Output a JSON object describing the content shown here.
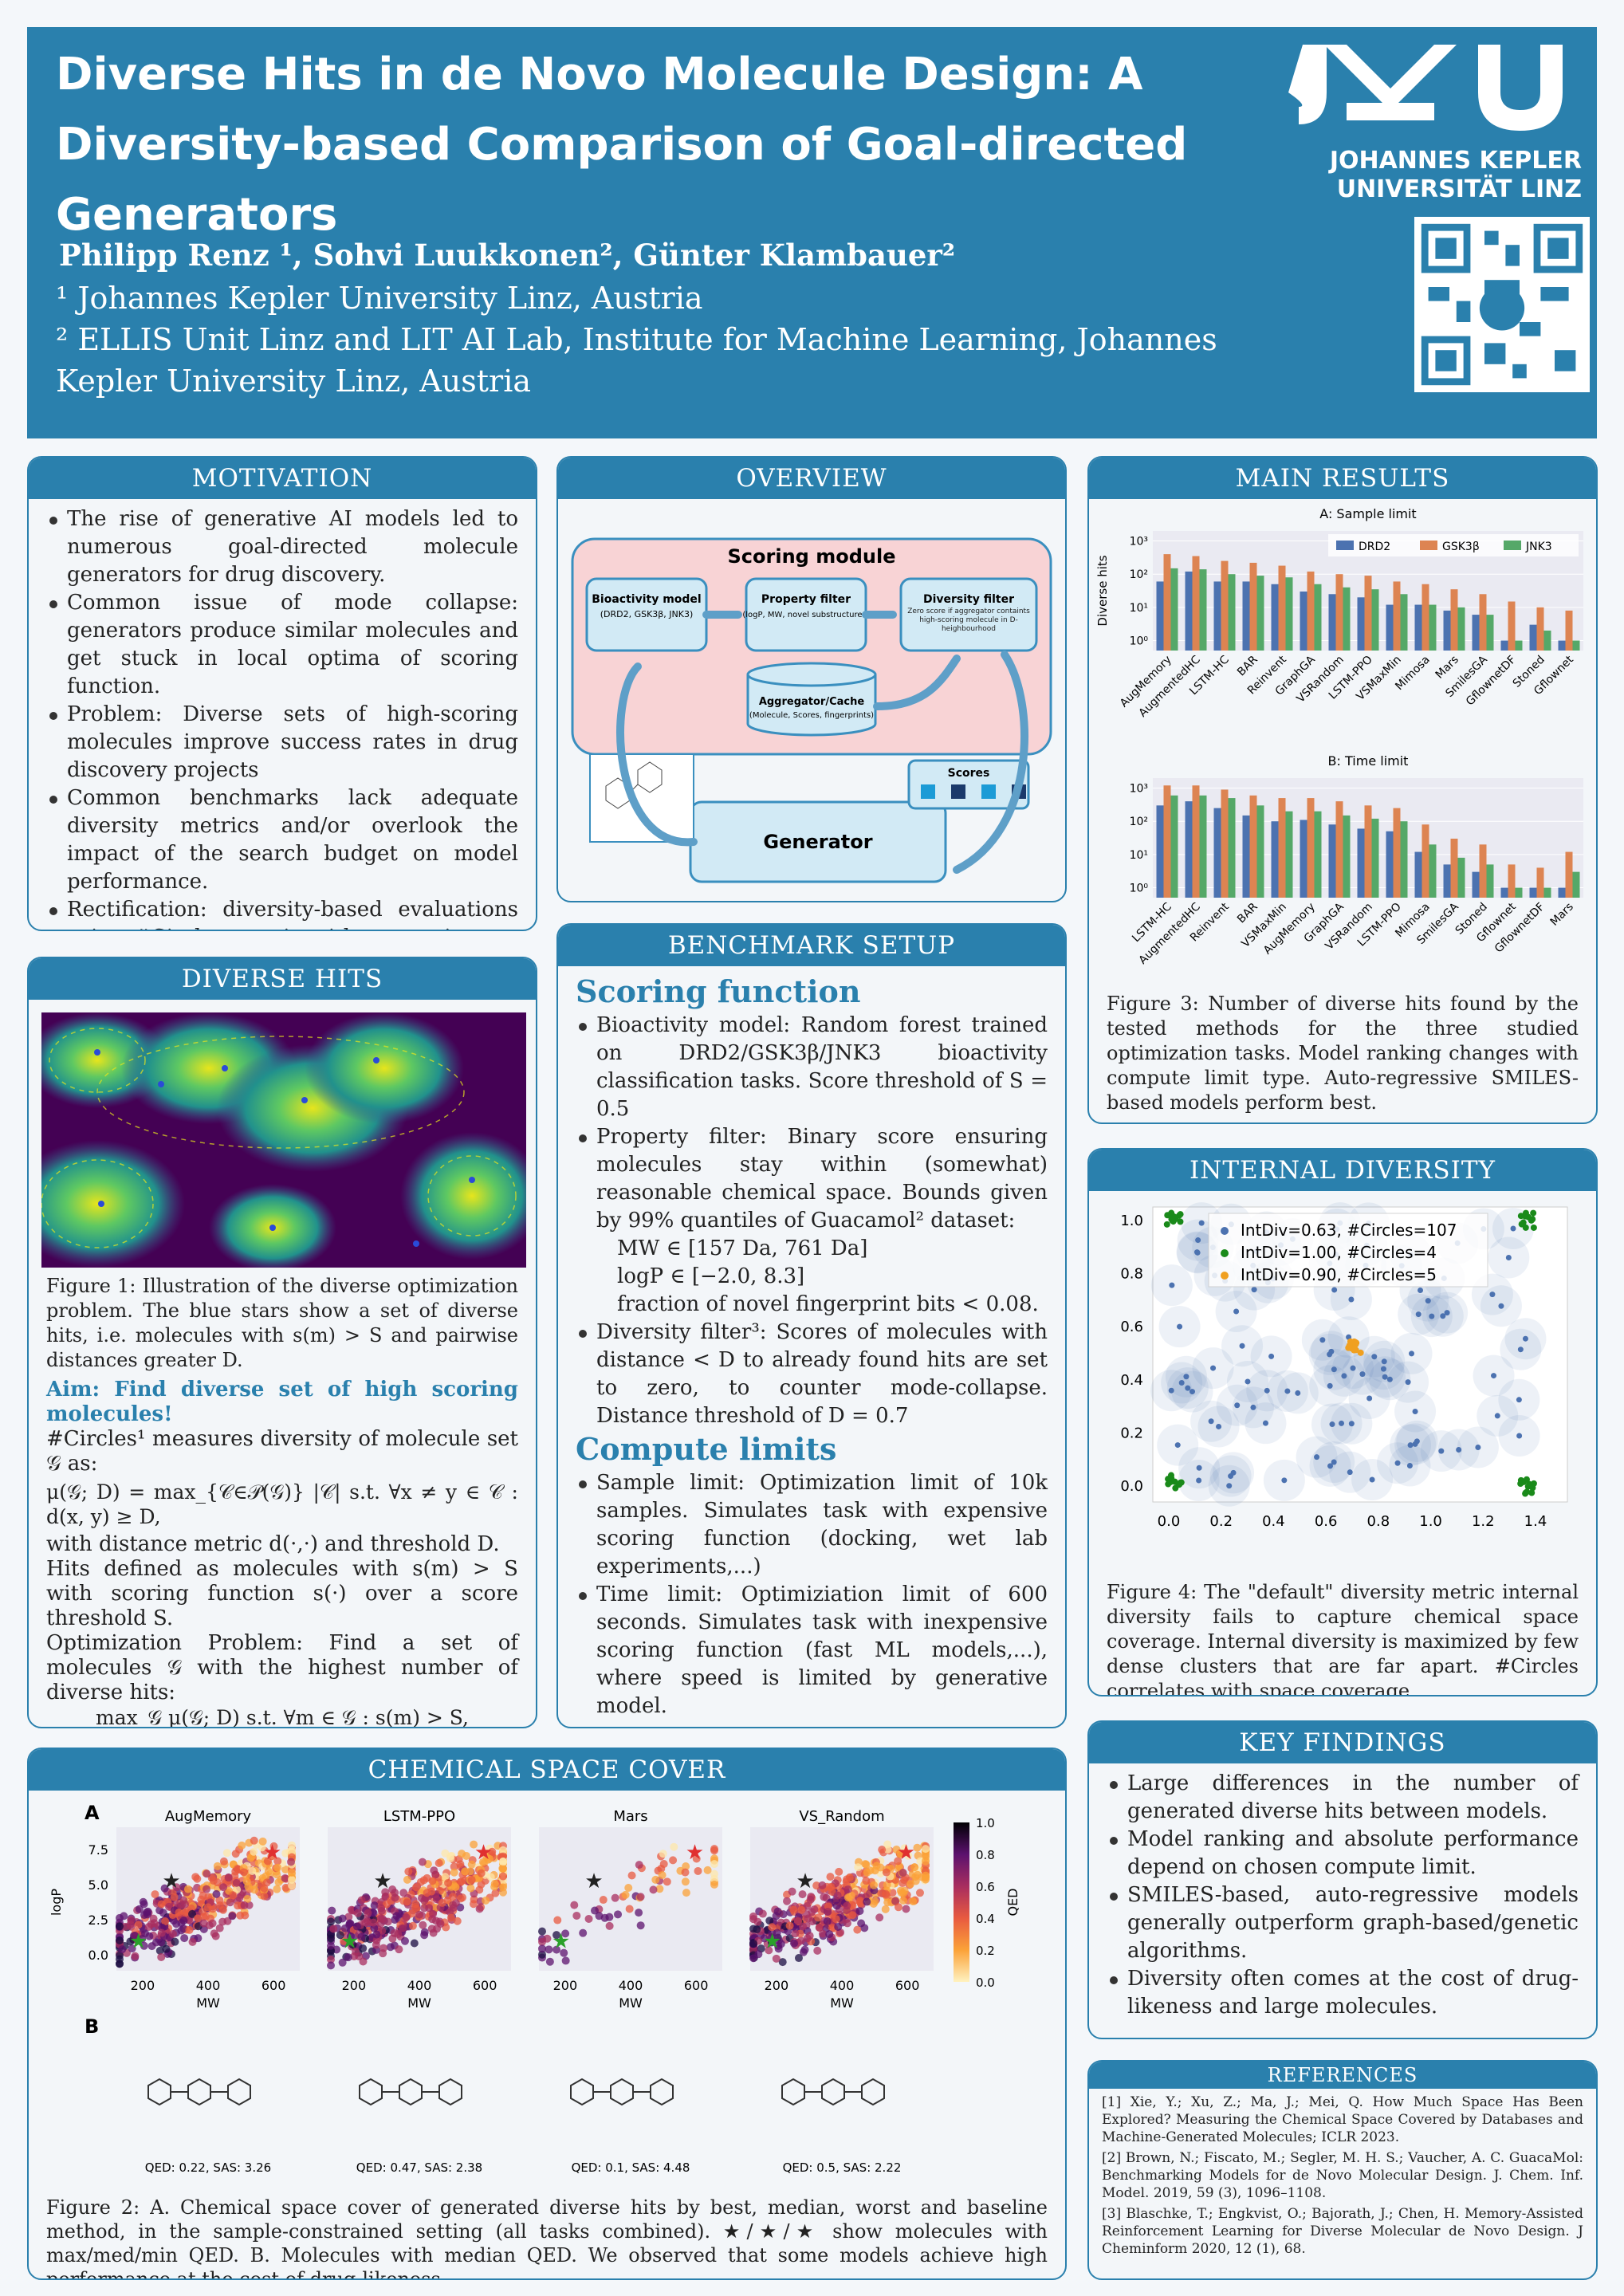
{
  "header": {
    "title": "Diverse Hits in de Novo Molecule Design: A Diversity-based Comparison of Goal-directed Generators",
    "authors": "Philipp Renz ¹, Sohvi Luukkonen², Günter Klambauer²",
    "aff1": "¹ Johannes Kepler University Linz, Austria",
    "aff2": "² ELLIS Unit Linz and LIT AI Lab, Institute for Machine Learning, Johannes Kepler University Linz, Austria",
    "uni": "JOHANNES KEPLER UNIVERSITÄT LINZ"
  },
  "motivation": {
    "title": "MOTIVATION",
    "items": [
      "The rise of generative AI models led to numerous goal-directed molecule generators for drug discovery.",
      "Common issue of mode collapse: generators produce similar molecules and get stuck in local optima of scoring function.",
      "Problem: Diverse sets of high-scoring molecules improve success rates in drug discovery projects",
      "Common benchmarks lack adequate diversity metrics and/or overlook the impact of the search budget on model performance.",
      "Rectification: diversity-based evaluations using #Circles metric with constraints on scoring function calls or compute time."
    ]
  },
  "overview": {
    "title": "OVERVIEW",
    "scoring_module": "Scoring module",
    "bio": "Bioactivity model",
    "bio_sub": "(DRD2, GSK3β, JNK3)",
    "prop": "Property filter",
    "prop_sub": "(logP, MW, novel substructures)",
    "div": "Diversity filter",
    "div_sub": "Zero score if aggregator containts high-scoring molecule in D-heighbourhood",
    "agg": "Aggregator/Cache",
    "agg_sub": "(Molecule, Scores, fingerprints)",
    "scores": "Scores",
    "generator": "Generator"
  },
  "diverse_hits": {
    "title": "DIVERSE HITS",
    "cap1": "Figure 1: Illustration of the diverse optimization problem. The blue stars show a set of diverse hits, i.e. molecules with s(m) > S and pairwise distances greater D.",
    "aim": "Aim: Find diverse set of high scoring molecules!",
    "circles": "#Circles¹ measures diversity of molecule set 𝒢 as:",
    "formula": "μ(𝒢; D) = max_{𝒞∈𝒫(𝒢)} |𝒞| s.t. ∀x ≠ y ∈ 𝒞 : d(x, y) ≥ D,",
    "with": "with distance metric d(·,·) and threshold D.",
    "hits": "Hits defined as molecules with s(m) > S with scoring function s(·) over a score threshold S.",
    "opt": "Optimization Problem: Find a set of molecules 𝒢 with the highest number of diverse hits:",
    "opt_formula": "max_𝒢 μ(𝒢; D)    s.t. ∀m ∈ 𝒢 : s(m) > S,"
  },
  "benchmark": {
    "title": "BENCHMARK SETUP",
    "scoring": "Scoring function",
    "b1": "Bioactivity model: Random forest trained on DRD2/GSK3β/JNK3 bioactivity classification tasks. Score threshold of S = 0.5",
    "b2": "Property filter: Binary score ensuring molecules stay within (somewhat) reasonable chemical space. Bounds given by 99% quantiles of Guacamol² dataset:",
    "s1": "MW ∈ [157 Da, 761 Da]",
    "s2": "logP ∈ [−2.0, 8.3]",
    "s3": "fraction of novel fingerprint bits < 0.08.",
    "b3": "Diversity filter³: Scores of molecules with distance < D to already found hits are set to zero, to counter mode-collapse. Distance threshold of D = 0.7",
    "compute": "Compute limits",
    "c1": "Sample limit: Optimization limit of 10k samples. Simulates task with expensive scoring function (docking, wet lab experiments,...)",
    "c2": "Time limit: Optimiziation limit of 600 seconds. Simulates task with inexpensive scoring function (fast ML models,...), where speed is limited by generative model."
  },
  "main_results": {
    "title": "MAIN RESULTS",
    "cap": "Figure 3: Number of diverse hits found by the tested methods for the three studied optimization tasks. Model ranking changes with compute limit type. Auto-regressive SMILES-based models perform best."
  },
  "internal": {
    "title": "INTERNAL DIVERSITY",
    "cap": "Figure 4: The \"default\" diversity metric internal diversity fails to capture chemical space coverage. Internal diversity is maximized by few dense clusters that are far apart. #Circles correlates with space coverage."
  },
  "key": {
    "title": "KEY FINDINGS",
    "items": [
      "Large differences in the number of generated diverse hits between models.",
      "Model ranking and absolute performance depend on chosen compute limit.",
      "SMILES-based, auto-regressive models generally outperform graph-based/genetic algorithms.",
      "Diversity often comes at the cost of drug-likeness and large molecules."
    ]
  },
  "refs": {
    "title": "REFERENCES",
    "items": [
      "[1] Xie, Y.; Xu, Z.; Ma, J.; Mei, Q. How Much Space Has Been Explored? Measuring the Chemical Space Covered by Databases and Machine-Generated Molecules; ICLR 2023.",
      "[2] Brown, N.; Fiscato, M.; Segler, M. H. S.; Vaucher, A. C. GuacaMol: Benchmarking Models for de Novo Molecular Design. J. Chem. Inf. Model. 2019, 59 (3), 1096–1108.",
      "[3] Blaschke, T.; Engkvist, O.; Bajorath, J.; Chen, H. Memory-Assisted Reinforcement Learning for Diverse Molecular de Novo Design. J Cheminform 2020, 12 (1), 68."
    ]
  },
  "chem": {
    "title": "CHEMICAL SPACE COVER",
    "panels": [
      "AugMemory",
      "LSTM-PPO",
      "Mars",
      "VS_Random"
    ],
    "qed": [
      "QED: 0.22, SAS: 3.26",
      "QED: 0.47, SAS: 2.38",
      "QED: 0.1, SAS: 4.48",
      "QED: 0.5, SAS: 2.22"
    ],
    "cap": "Figure 2: A. Chemical space cover of generated diverse hits by best, median, worst and baseline method, in the sample-constrained setting (all tasks combined). ★/★/★ show molecules with max/med/min QED. B. Molecules with median QED. We observed that some models achieve high performance at the cost of drug-likeness."
  },
  "chart_data": [
    {
      "type": "bar",
      "title": "A: Sample limit",
      "ylabel": "Diverse hits",
      "log": true,
      "categories": [
        "AugMemory",
        "AugmentedHC",
        "LSTM-HC",
        "BAR",
        "Reinvent",
        "GraphGA",
        "VSRandom",
        "LSTM-PPO",
        "VSMaxMin",
        "Mimosa",
        "Mars",
        "SmilesGA",
        "GflownetDF",
        "Stoned",
        "Gflownet"
      ],
      "series": [
        {
          "name": "DRD2",
          "color": "#4c72b0",
          "values": [
            60,
            120,
            60,
            60,
            50,
            30,
            25,
            20,
            12,
            12,
            8,
            6,
            1,
            3,
            1
          ]
        },
        {
          "name": "GSK3β",
          "color": "#dd8452",
          "values": [
            400,
            350,
            250,
            220,
            180,
            120,
            100,
            90,
            60,
            50,
            35,
            25,
            15,
            10,
            8
          ]
        },
        {
          "name": "JNK3",
          "color": "#55a868",
          "values": [
            150,
            140,
            100,
            90,
            80,
            50,
            40,
            35,
            25,
            12,
            10,
            6,
            1,
            2,
            1
          ]
        }
      ]
    },
    {
      "type": "bar",
      "title": "B: Time limit",
      "log": true,
      "categories": [
        "LSTM-HC",
        "AugmentedHC",
        "Reinvent",
        "BAR",
        "VSMaxMin",
        "AugMemory",
        "GraphGA",
        "VSRandom",
        "LSTM-PPO",
        "Mimosa",
        "SmilesGA",
        "Stoned",
        "Gflownet",
        "GflownetDF",
        "Mars"
      ],
      "series": [
        {
          "name": "DRD2",
          "color": "#4c72b0",
          "values": [
            300,
            400,
            250,
            150,
            100,
            110,
            80,
            60,
            50,
            12,
            5,
            3,
            1,
            1,
            1
          ]
        },
        {
          "name": "GSK3β",
          "color": "#dd8452",
          "values": [
            1200,
            1200,
            900,
            600,
            500,
            500,
            400,
            300,
            250,
            80,
            30,
            20,
            5,
            4,
            12
          ]
        },
        {
          "name": "JNK3",
          "color": "#55a868",
          "values": [
            600,
            600,
            500,
            300,
            200,
            200,
            150,
            120,
            100,
            20,
            8,
            5,
            1,
            1,
            3
          ]
        }
      ]
    },
    {
      "type": "scatter",
      "legend": [
        "IntDiv=0.63, #Circles=107",
        "IntDiv=1.00, #Circles=4",
        "IntDiv=0.90, #Circles=5"
      ],
      "xlim": [
        0,
        1.4
      ],
      "ylim": [
        0,
        1.0
      ]
    }
  ]
}
